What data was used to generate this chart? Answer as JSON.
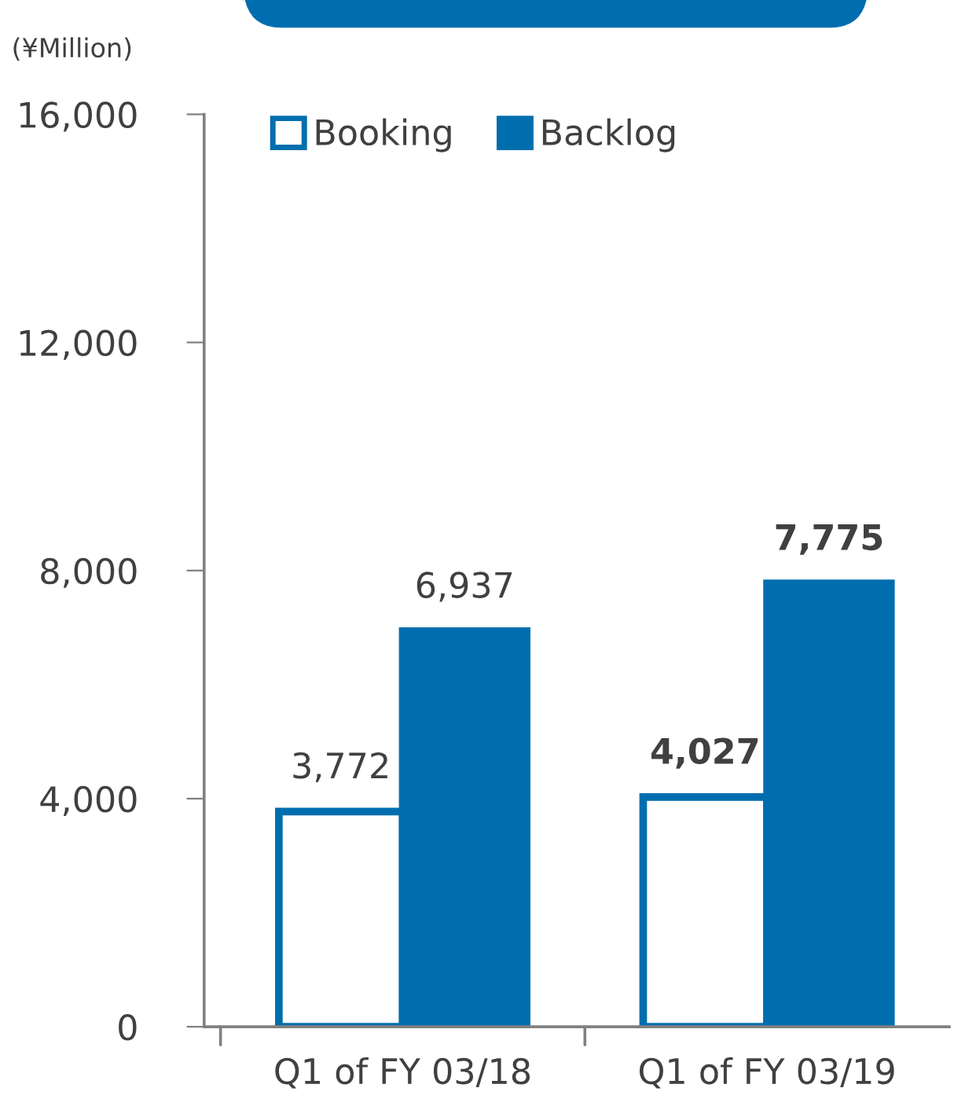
{
  "chart_data": {
    "type": "bar",
    "ylabel": "(¥Million)",
    "categories": [
      "Q1 of FY 03/18",
      "Q1 of FY 03/19"
    ],
    "series": [
      {
        "name": "Booking",
        "color": "#ffffff",
        "values": [
          3772,
          4027
        ],
        "value_labels": [
          "3,772",
          "4,027"
        ]
      },
      {
        "name": "Backlog",
        "color": "#006eae",
        "values": [
          6937,
          7775
        ],
        "value_labels": [
          "6,937",
          "7,775"
        ]
      }
    ],
    "ylim": [
      0,
      16000
    ],
    "yticks": [
      {
        "value": 0,
        "label": "0"
      },
      {
        "value": 4000,
        "label": "4,000"
      },
      {
        "value": 8000,
        "label": "8,000"
      },
      {
        "value": 12000,
        "label": "12,000"
      },
      {
        "value": 16000,
        "label": "16,000"
      }
    ],
    "grid": false,
    "legend": "top left"
  }
}
